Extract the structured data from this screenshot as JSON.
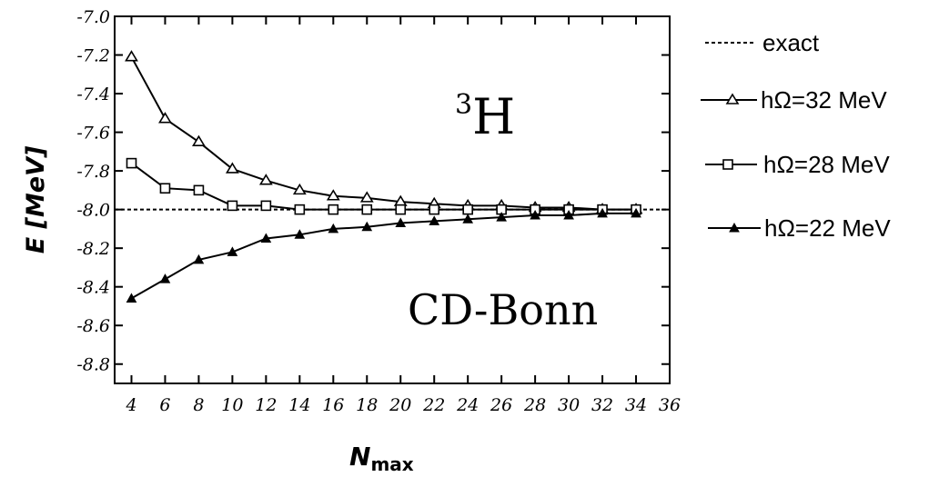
{
  "chart_data": {
    "type": "line",
    "title": "",
    "xlabel": "N",
    "xlabel_sub": "max",
    "ylabel": "E [MeV]",
    "xlim": [
      3,
      36
    ],
    "ylim": [
      -8.9,
      -7.0
    ],
    "x_ticks": [
      4,
      6,
      8,
      10,
      12,
      14,
      16,
      18,
      20,
      22,
      24,
      26,
      28,
      30,
      32,
      34,
      36
    ],
    "y_ticks": [
      -7.0,
      -7.2,
      -7.4,
      -7.6,
      -7.8,
      -8.0,
      -8.2,
      -8.4,
      -8.6,
      -8.8
    ],
    "y_tick_labels": [
      "-7.0",
      "-7.2",
      "-7.4",
      "-7.6",
      "-7.8",
      "-8.0",
      "-8.2",
      "-8.4",
      "-8.6",
      "-8.8"
    ],
    "grid": false,
    "legend_position": "right",
    "exact": {
      "name": "exact",
      "value": -8.0,
      "style": "dashed"
    },
    "series": [
      {
        "name": "hΩ=32 MeV",
        "marker": "triangle-open",
        "x": [
          4,
          6,
          8,
          10,
          12,
          14,
          16,
          18,
          20,
          22,
          24,
          26,
          28,
          30,
          32,
          34
        ],
        "values": [
          -7.21,
          -7.53,
          -7.65,
          -7.79,
          -7.85,
          -7.9,
          -7.93,
          -7.94,
          -7.96,
          -7.97,
          -7.98,
          -7.98,
          -7.99,
          -7.99,
          -8.0,
          -8.0
        ]
      },
      {
        "name": "hΩ=28 MeV",
        "marker": "square-open",
        "x": [
          4,
          6,
          8,
          10,
          12,
          14,
          16,
          18,
          20,
          22,
          24,
          26,
          28,
          30,
          32,
          34
        ],
        "values": [
          -7.76,
          -7.89,
          -7.9,
          -7.98,
          -7.98,
          -8.0,
          -8.0,
          -8.0,
          -8.0,
          -8.0,
          -8.0,
          -8.0,
          -8.0,
          -8.0,
          -8.0,
          -8.0
        ]
      },
      {
        "name": "hΩ=22 MeV",
        "marker": "triangle-filled",
        "x": [
          4,
          6,
          8,
          10,
          12,
          14,
          16,
          18,
          20,
          22,
          24,
          26,
          28,
          30,
          32,
          34
        ],
        "values": [
          -8.46,
          -8.36,
          -8.26,
          -8.22,
          -8.15,
          -8.13,
          -8.1,
          -8.09,
          -8.07,
          -8.06,
          -8.05,
          -8.04,
          -8.03,
          -8.03,
          -8.02,
          -8.02
        ]
      }
    ],
    "annotations": [
      {
        "text": "H",
        "superscript": "3",
        "role": "nucleus"
      },
      {
        "text": "CD-Bonn",
        "role": "potential"
      }
    ]
  }
}
